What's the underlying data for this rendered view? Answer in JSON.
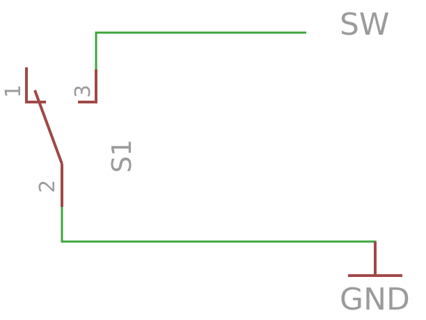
{
  "schematic": {
    "net_sw_label": "SW",
    "net_gnd_label": "GND",
    "component_ref": "S1",
    "pin_1": "1",
    "pin_2": "2",
    "pin_3": "3"
  },
  "colors": {
    "wire": "#3da53d",
    "symbol": "#a04848",
    "label": "#9b9b9b",
    "background": "#ffffff"
  }
}
